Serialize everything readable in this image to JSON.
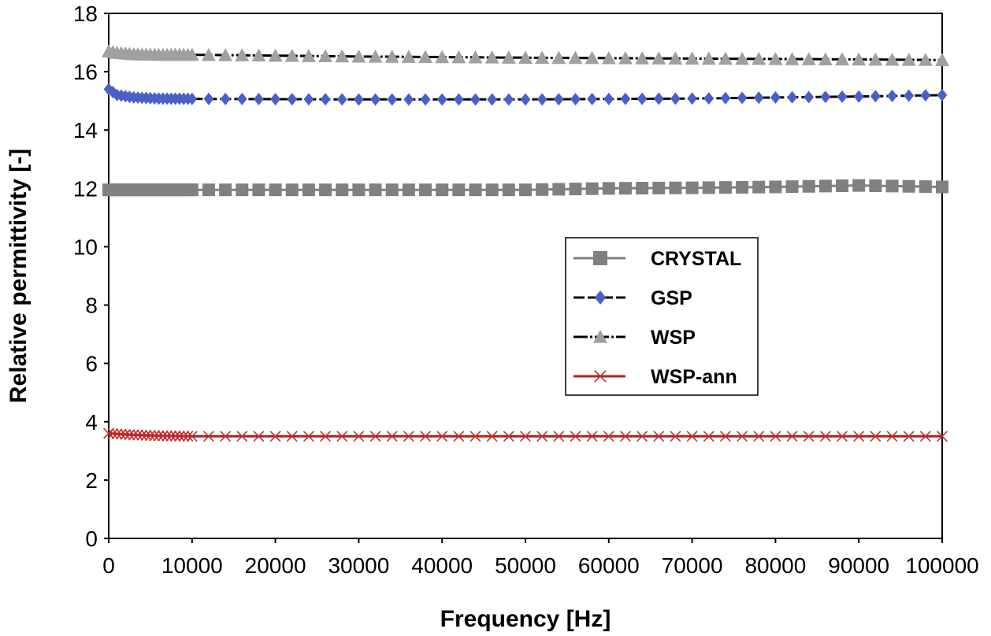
{
  "chart_data": {
    "type": "line",
    "xlabel": "Frequency [Hz]",
    "ylabel": "Relative permittivity [-]",
    "xlim": [
      0,
      100000
    ],
    "ylim": [
      0,
      18
    ],
    "x_ticks": [
      "0",
      "10000",
      "20000",
      "30000",
      "40000",
      "50000",
      "60000",
      "70000",
      "80000",
      "90000",
      "100000"
    ],
    "y_ticks": [
      "0",
      "2",
      "4",
      "6",
      "8",
      "10",
      "12",
      "14",
      "16",
      "18"
    ],
    "grid": false,
    "legend_position": "center-right",
    "series": [
      {
        "name": "CRYSTAL",
        "color": "#808080",
        "line_color": "#808080",
        "line_dash": "solid",
        "marker": "square",
        "points": [
          [
            0,
            11.95
          ],
          [
            10000,
            11.95
          ],
          [
            20000,
            11.95
          ],
          [
            30000,
            11.95
          ],
          [
            40000,
            11.95
          ],
          [
            50000,
            11.95
          ],
          [
            60000,
            12.0
          ],
          [
            70000,
            12.02
          ],
          [
            80000,
            12.05
          ],
          [
            90000,
            12.1
          ],
          [
            100000,
            12.05
          ]
        ]
      },
      {
        "name": "GSP",
        "color": "#4b5fc8",
        "line_color": "#000000",
        "line_dash": "dashed",
        "marker": "diamond",
        "points": [
          [
            0,
            15.4
          ],
          [
            1000,
            15.2
          ],
          [
            3000,
            15.12
          ],
          [
            6000,
            15.08
          ],
          [
            10000,
            15.07
          ],
          [
            30000,
            15.05
          ],
          [
            50000,
            15.05
          ],
          [
            70000,
            15.08
          ],
          [
            90000,
            15.15
          ],
          [
            100000,
            15.2
          ]
        ]
      },
      {
        "name": "WSP",
        "color": "#a0a0a0",
        "line_color": "#000000",
        "line_dash": "dotted",
        "marker": "triangle",
        "points": [
          [
            0,
            16.7
          ],
          [
            1000,
            16.65
          ],
          [
            3000,
            16.6
          ],
          [
            6000,
            16.58
          ],
          [
            10000,
            16.58
          ],
          [
            30000,
            16.52
          ],
          [
            50000,
            16.48
          ],
          [
            70000,
            16.45
          ],
          [
            90000,
            16.42
          ],
          [
            100000,
            16.4
          ]
        ]
      },
      {
        "name": "WSP-ann",
        "color": "#c03030",
        "line_color": "#b02020",
        "line_dash": "solid",
        "marker": "x",
        "points": [
          [
            0,
            3.6
          ],
          [
            1000,
            3.58
          ],
          [
            3000,
            3.55
          ],
          [
            6000,
            3.52
          ],
          [
            10000,
            3.5
          ],
          [
            30000,
            3.5
          ],
          [
            50000,
            3.5
          ],
          [
            70000,
            3.5
          ],
          [
            90000,
            3.5
          ],
          [
            100000,
            3.5
          ]
        ]
      }
    ]
  }
}
